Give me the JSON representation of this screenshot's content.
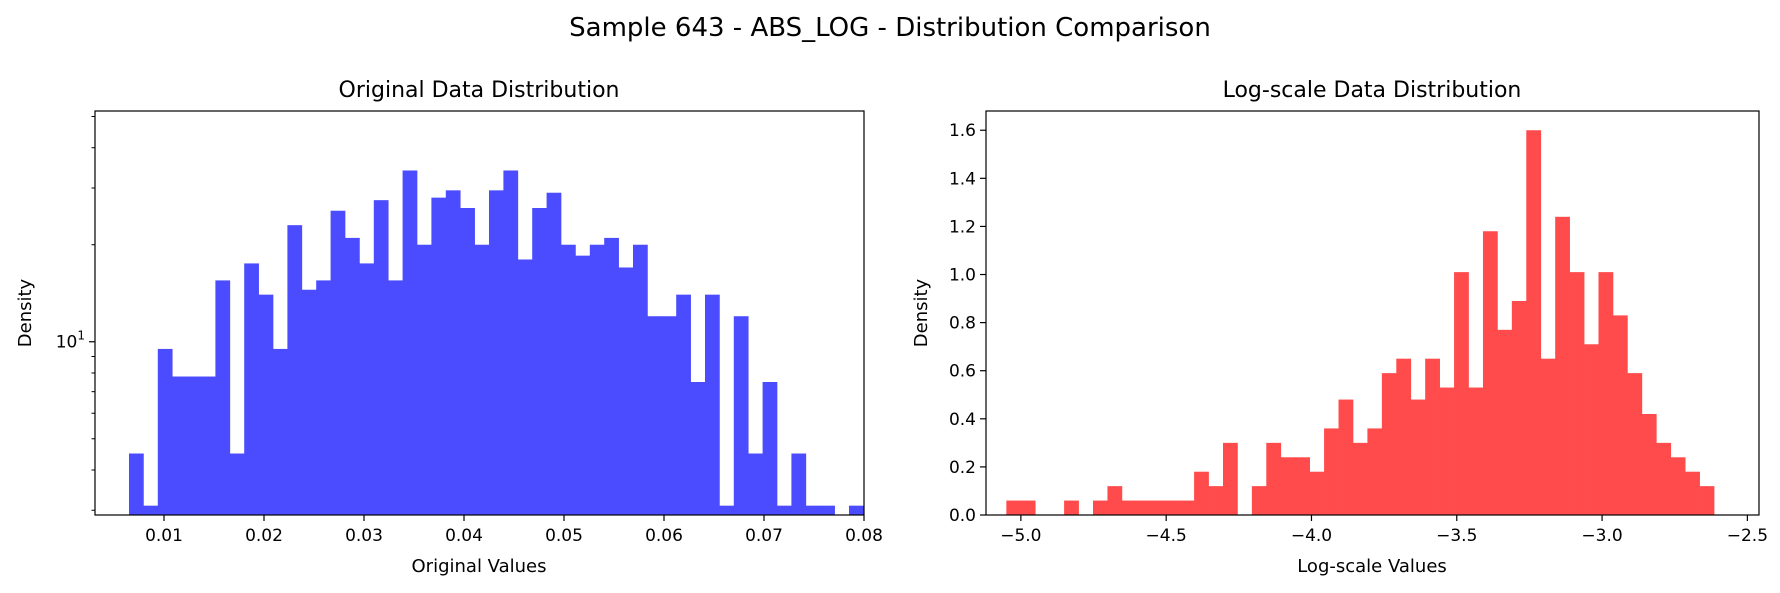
{
  "figure_title": "Sample 643 - ABS_LOG - Distribution Comparison",
  "chart_data": [
    {
      "type": "bar",
      "title": "Original Data Distribution",
      "xlabel": "Original Values",
      "ylabel": "Density",
      "color": "#4b4bff",
      "yscale": "log",
      "xlim": [
        0.0031,
        0.08
      ],
      "ylim": [
        2.9,
        52
      ],
      "bin_start": 0.0065,
      "bin_width": 0.00144,
      "values": [
        4.5,
        3.1,
        9.5,
        7.8,
        7.8,
        7.8,
        15.5,
        4.5,
        17.5,
        14.0,
        9.5,
        23.0,
        14.5,
        15.5,
        25.5,
        21.0,
        17.5,
        27.5,
        15.5,
        34.0,
        20.0,
        28.0,
        29.5,
        26.0,
        20.0,
        29.5,
        34.0,
        18.0,
        26.0,
        29.0,
        20.0,
        18.5,
        20.0,
        21.0,
        17.0,
        20.0,
        12.0,
        12.0,
        14.0,
        7.5,
        14.0,
        3.1,
        12.0,
        4.5,
        7.5,
        3.1,
        4.5,
        3.1,
        3.1,
        0,
        3.1
      ],
      "xticks": [
        0.01,
        0.02,
        0.03,
        0.04,
        0.05,
        0.06,
        0.07,
        0.08
      ],
      "xtick_labels": [
        "0.01",
        "0.02",
        "0.03",
        "0.04",
        "0.05",
        "0.06",
        "0.07",
        "0.08"
      ],
      "yticks": [
        10
      ],
      "ytick_labels": [
        "10"
      ],
      "ytick_exponents": [
        "1"
      ],
      "grid": false
    },
    {
      "type": "bar",
      "title": "Log-scale Data Distribution",
      "xlabel": "Log-scale Values",
      "ylabel": "Density",
      "color": "#ff4b4b",
      "yscale": "linear",
      "xlim": [
        -5.12,
        -2.46
      ],
      "ylim": [
        0,
        1.68
      ],
      "bin_start": -5.05,
      "bin_width": 0.0497,
      "values": [
        0.06,
        0.06,
        0,
        0,
        0.06,
        0,
        0.06,
        0.12,
        0.06,
        0.06,
        0.06,
        0.06,
        0.06,
        0.18,
        0.12,
        0.3,
        0,
        0.12,
        0.3,
        0.24,
        0.24,
        0.18,
        0.36,
        0.48,
        0.3,
        0.36,
        0.59,
        0.65,
        0.48,
        0.65,
        0.53,
        1.01,
        0.53,
        1.18,
        0.77,
        0.89,
        1.6,
        0.65,
        1.24,
        1.01,
        0.71,
        1.01,
        0.83,
        0.59,
        0.42,
        0.3,
        0.24,
        0.18,
        0.12
      ],
      "xticks": [
        -5.0,
        -4.5,
        -4.0,
        -3.5,
        -3.0,
        -2.5
      ],
      "xtick_labels": [
        "−5.0",
        "−4.5",
        "−4.0",
        "−3.5",
        "−3.0",
        "−2.5"
      ],
      "yticks": [
        0.0,
        0.2,
        0.4,
        0.6,
        0.8,
        1.0,
        1.2,
        1.4,
        1.6
      ],
      "ytick_labels": [
        "0.0",
        "0.2",
        "0.4",
        "0.6",
        "0.8",
        "1.0",
        "1.2",
        "1.4",
        "1.6"
      ],
      "grid": false
    }
  ]
}
